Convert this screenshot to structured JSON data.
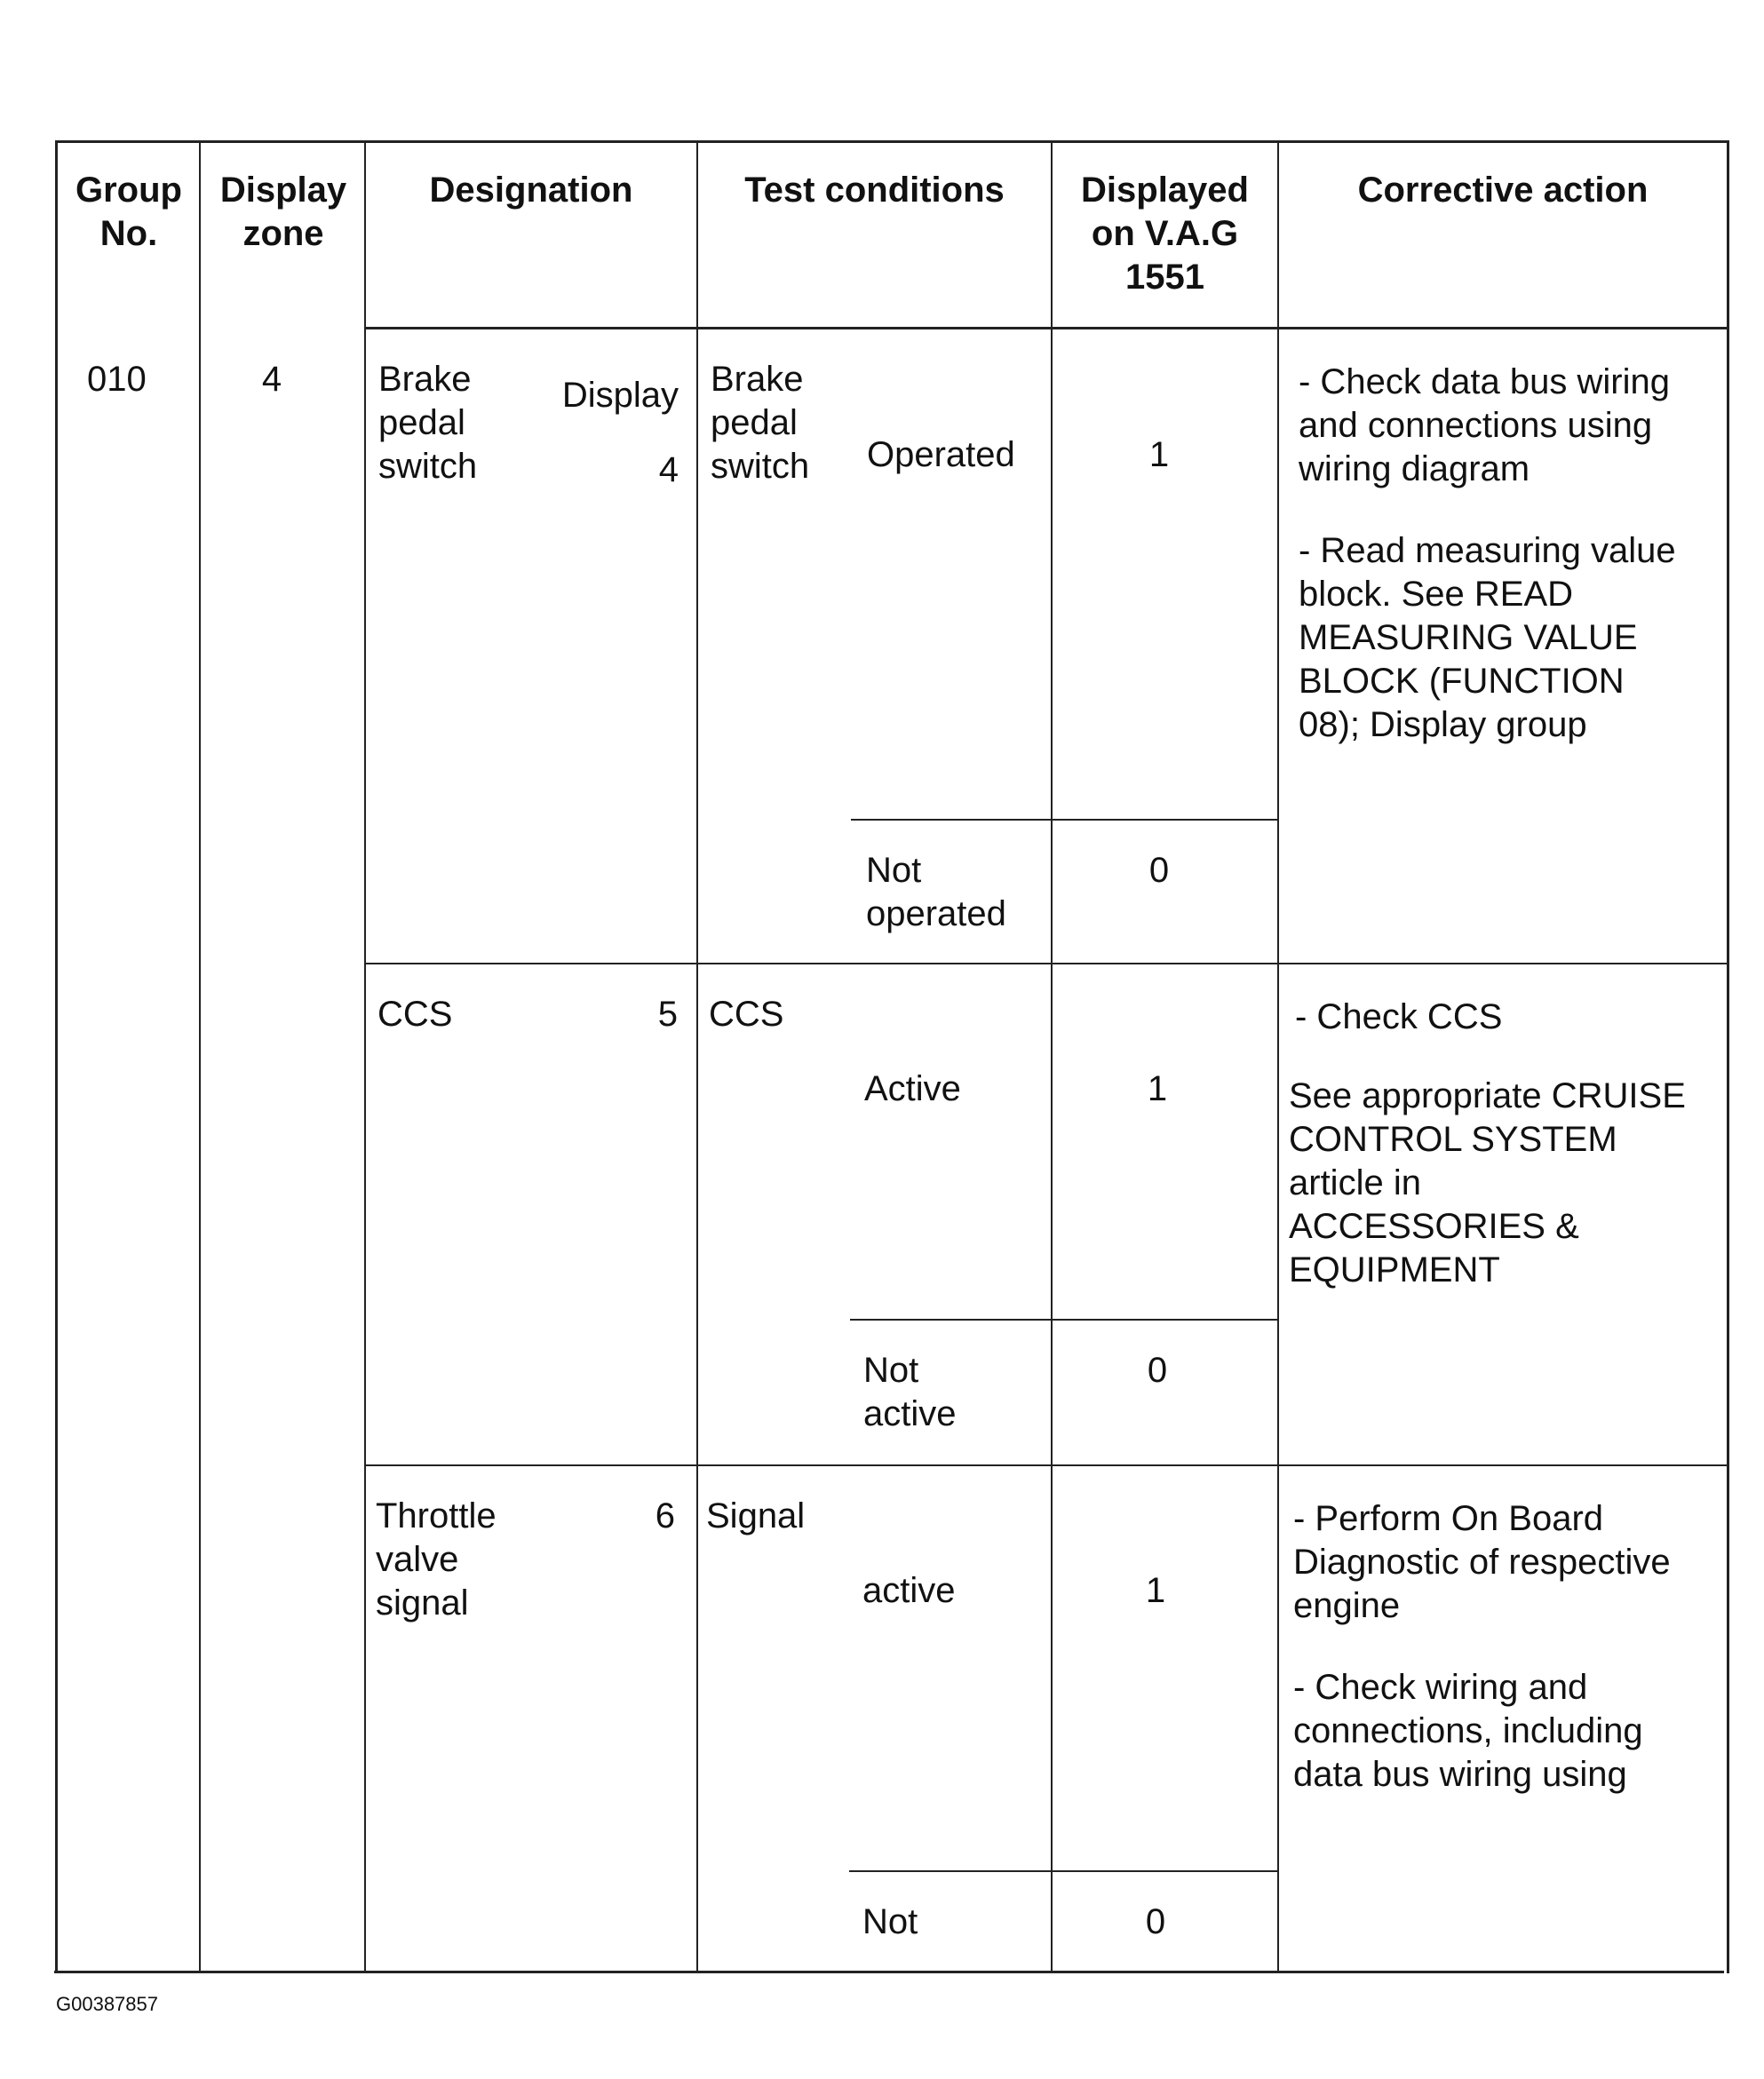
{
  "headers": [
    "Group\nNo.",
    "Display\nzone",
    "Designation",
    "Test conditions",
    "Displayed\non V.A.G\n1551",
    "Corrective action"
  ],
  "group_no": "010",
  "display_zone": "4",
  "rows": [
    {
      "designation": "Brake\npedal\nswitch",
      "display_label": "Display\n4",
      "test_label": "Brake\npedal\nswitch",
      "conditions": [
        {
          "condition": "Operated",
          "value": "1"
        },
        {
          "condition": "Not\noperated",
          "value": "0"
        }
      ],
      "corrective": [
        "- Check data bus wiring\nand connections using\nwiring diagram",
        "- Read measuring value\nblock. See READ\nMEASURING VALUE\nBLOCK (FUNCTION\n08); Display group"
      ]
    },
    {
      "designation": "CCS",
      "display_label": "5",
      "test_label": "CCS",
      "conditions": [
        {
          "condition": "Active",
          "value": "1"
        },
        {
          "condition": "Not\nactive",
          "value": "0"
        }
      ],
      "corrective": [
        "- Check CCS",
        "See appropriate CRUISE\nCONTROL SYSTEM\narticle in\nACCESSORIES &\nEQUIPMENT"
      ]
    },
    {
      "designation": "Throttle\nvalve\nsignal",
      "display_label": "6",
      "test_label": "Signal",
      "conditions": [
        {
          "condition": "active",
          "value": "1"
        },
        {
          "condition": "Not",
          "value": "0"
        }
      ],
      "corrective": [
        "- Perform On Board\nDiagnostic of respective\nengine",
        "- Check wiring and\nconnections, including\ndata bus wiring using"
      ]
    }
  ],
  "figure_id": "G00387857"
}
